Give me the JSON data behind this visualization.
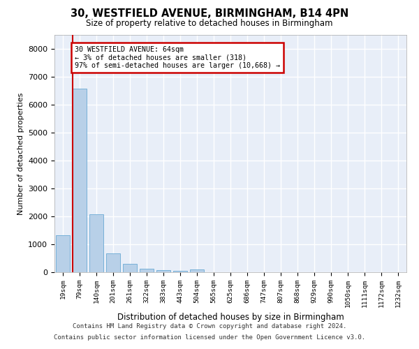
{
  "title1": "30, WESTFIELD AVENUE, BIRMINGHAM, B14 4PN",
  "title2": "Size of property relative to detached houses in Birmingham",
  "xlabel": "Distribution of detached houses by size in Birmingham",
  "ylabel": "Number of detached properties",
  "bar_color": "#b8d0e8",
  "bar_edge_color": "#6aaad4",
  "background_color": "#e8eef8",
  "grid_color": "#ffffff",
  "annotation_line_color": "#cc0000",
  "annotation_box_edgecolor": "#cc0000",
  "annotation_text_line1": "30 WESTFIELD AVENUE: 64sqm",
  "annotation_text_line2": "← 3% of detached houses are smaller (318)",
  "annotation_text_line3": "97% of semi-detached houses are larger (10,668) →",
  "categories": [
    "19sqm",
    "79sqm",
    "140sqm",
    "201sqm",
    "261sqm",
    "322sqm",
    "383sqm",
    "443sqm",
    "504sqm",
    "565sqm",
    "625sqm",
    "686sqm",
    "747sqm",
    "807sqm",
    "868sqm",
    "929sqm",
    "990sqm",
    "1050sqm",
    "1111sqm",
    "1172sqm",
    "1232sqm"
  ],
  "values": [
    1320,
    6580,
    2080,
    680,
    290,
    130,
    80,
    50,
    90,
    0,
    0,
    0,
    0,
    0,
    0,
    0,
    0,
    0,
    0,
    0,
    0
  ],
  "ylim": [
    0,
    8500
  ],
  "yticks": [
    0,
    1000,
    2000,
    3000,
    4000,
    5000,
    6000,
    7000,
    8000
  ],
  "footnote1": "Contains HM Land Registry data © Crown copyright and database right 2024.",
  "footnote2": "Contains public sector information licensed under the Open Government Licence v3.0."
}
